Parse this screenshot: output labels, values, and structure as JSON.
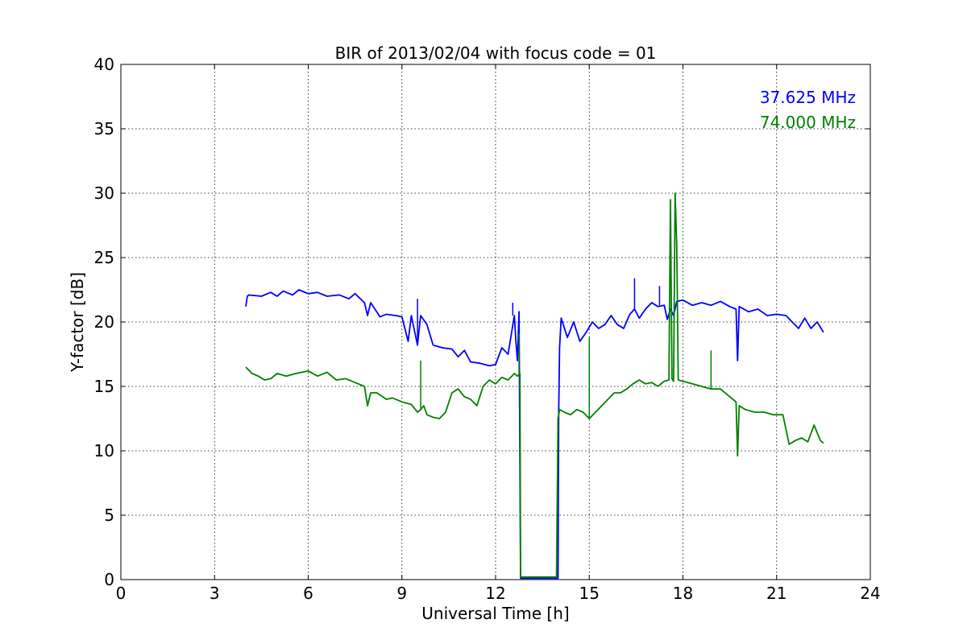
{
  "chart_data": {
    "type": "line",
    "title": "BIR of 2013/02/04 with focus code = 01",
    "xlabel": "Universal Time [h]",
    "ylabel": "Y-factor [dB]",
    "xlim": [
      0,
      24
    ],
    "ylim": [
      0,
      40
    ],
    "xticks": [
      0,
      3,
      6,
      9,
      12,
      15,
      18,
      21,
      24
    ],
    "yticks": [
      0,
      5,
      10,
      15,
      20,
      25,
      30,
      35,
      40
    ],
    "grid": true,
    "legend_position": "top-right",
    "series": [
      {
        "name": "37.625 MHz",
        "color": "#0000ff",
        "x": [
          4.0,
          4.05,
          4.1,
          4.5,
          4.8,
          5.0,
          5.2,
          5.5,
          5.7,
          6.0,
          6.3,
          6.6,
          7.0,
          7.3,
          7.5,
          7.8,
          7.9,
          8.0,
          8.3,
          8.5,
          8.8,
          9.0,
          9.2,
          9.3,
          9.5,
          9.6,
          9.8,
          10.0,
          10.3,
          10.6,
          10.8,
          11.0,
          11.2,
          11.5,
          11.8,
          12.0,
          12.2,
          12.4,
          12.5,
          12.6,
          12.65,
          12.7,
          12.75,
          12.8,
          14.0,
          14.02,
          14.05,
          14.1,
          14.3,
          14.5,
          14.7,
          14.9,
          15.1,
          15.3,
          15.5,
          15.7,
          15.9,
          16.1,
          16.3,
          16.45,
          16.6,
          16.8,
          17.0,
          17.2,
          17.4,
          17.5,
          17.6,
          17.7,
          17.8,
          18.0,
          18.3,
          18.6,
          18.9,
          19.2,
          19.5,
          19.7,
          19.75,
          19.8,
          20.1,
          20.4,
          20.7,
          21.0,
          21.3,
          21.5,
          21.7,
          21.9,
          22.1,
          22.3,
          22.5
        ],
        "y": [
          21.2,
          22.0,
          22.1,
          22.0,
          22.3,
          22.0,
          22.4,
          22.1,
          22.5,
          22.2,
          22.3,
          22.0,
          22.1,
          21.8,
          22.2,
          21.5,
          20.5,
          21.5,
          20.4,
          20.6,
          20.5,
          20.4,
          18.5,
          20.5,
          18.2,
          20.5,
          19.8,
          18.2,
          18.0,
          17.9,
          17.3,
          17.8,
          16.9,
          16.8,
          16.6,
          16.7,
          18.0,
          17.5,
          19.0,
          20.5,
          18.5,
          17.0,
          20.8,
          0.1,
          0.1,
          12.8,
          18.0,
          20.3,
          18.8,
          20.0,
          18.5,
          19.2,
          20.0,
          19.5,
          19.8,
          20.5,
          19.8,
          19.5,
          20.6,
          21.0,
          20.3,
          21.0,
          21.5,
          21.2,
          21.3,
          20.2,
          21.0,
          20.5,
          21.6,
          21.7,
          21.3,
          21.5,
          21.3,
          21.6,
          21.2,
          21.0,
          17.0,
          21.2,
          20.8,
          21.0,
          20.5,
          20.6,
          20.5,
          20.0,
          19.5,
          20.3,
          19.5,
          20.0,
          19.2
        ],
        "annotations": [
          {
            "x": 16.45,
            "y": 23.4
          },
          {
            "x": 17.25,
            "y": 22.8
          },
          {
            "x": 12.55,
            "y": 21.5
          },
          {
            "x": 9.5,
            "y": 21.8
          }
        ]
      },
      {
        "name": "74.000 MHz",
        "color": "#008000",
        "x": [
          4.0,
          4.2,
          4.4,
          4.6,
          4.8,
          5.0,
          5.3,
          5.6,
          6.0,
          6.3,
          6.6,
          6.9,
          7.2,
          7.5,
          7.8,
          7.9,
          8.0,
          8.2,
          8.5,
          8.7,
          9.0,
          9.3,
          9.5,
          9.6,
          9.7,
          9.8,
          10.0,
          10.2,
          10.4,
          10.6,
          10.8,
          11.0,
          11.2,
          11.4,
          11.6,
          11.8,
          12.0,
          12.2,
          12.4,
          12.6,
          12.7,
          12.78,
          12.8,
          13.0,
          13.5,
          13.95,
          14.0,
          14.05,
          14.2,
          14.4,
          14.6,
          14.8,
          15.0,
          15.2,
          15.4,
          15.6,
          15.8,
          16.0,
          16.2,
          16.4,
          16.6,
          16.8,
          17.0,
          17.2,
          17.4,
          17.55,
          17.6,
          17.65,
          17.7,
          17.75,
          17.8,
          17.85,
          18.0,
          18.3,
          18.6,
          18.9,
          19.2,
          19.5,
          19.7,
          19.75,
          19.8,
          20.0,
          20.3,
          20.6,
          20.9,
          21.2,
          21.4,
          21.6,
          21.8,
          22.0,
          22.2,
          22.4,
          22.5
        ],
        "y": [
          16.5,
          16.0,
          15.8,
          15.5,
          15.6,
          16.0,
          15.8,
          16.0,
          16.2,
          15.8,
          16.1,
          15.5,
          15.6,
          15.3,
          15.0,
          13.5,
          14.5,
          14.5,
          14.0,
          14.1,
          13.8,
          13.6,
          13.0,
          13.2,
          13.5,
          12.8,
          12.6,
          12.5,
          13.0,
          14.5,
          14.8,
          14.2,
          14.0,
          13.5,
          15.0,
          15.5,
          15.2,
          15.7,
          15.5,
          16.0,
          15.8,
          16.0,
          0.2,
          0.2,
          0.2,
          0.2,
          12.5,
          13.2,
          13.0,
          12.8,
          13.2,
          13.0,
          12.5,
          13.0,
          13.5,
          14.0,
          14.5,
          14.5,
          14.8,
          15.2,
          15.5,
          15.2,
          15.3,
          15.0,
          15.4,
          15.5,
          29.5,
          15.6,
          15.4,
          30.0,
          26.0,
          15.5,
          15.4,
          15.2,
          15.0,
          14.8,
          14.8,
          14.2,
          13.8,
          9.6,
          13.5,
          13.2,
          13.0,
          13.0,
          12.8,
          12.8,
          10.5,
          10.8,
          11.0,
          10.7,
          12.0,
          10.8,
          10.6
        ],
        "annotations": [
          {
            "x": 15.0,
            "y": 18.8
          },
          {
            "x": 18.9,
            "y": 17.8
          },
          {
            "x": 12.75,
            "y": 19.1
          },
          {
            "x": 9.6,
            "y": 17.0
          }
        ]
      }
    ]
  }
}
